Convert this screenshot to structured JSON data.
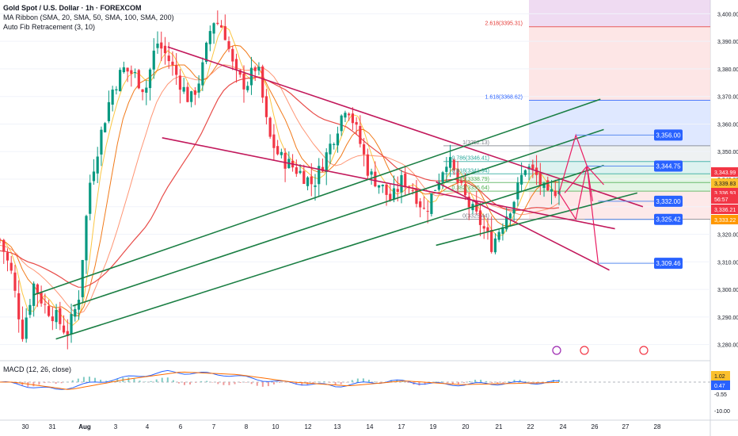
{
  "legend": {
    "title": "Gold Spot / U.S. Dollar · 1h · FOREXCOM",
    "ma_ribbon": "MA Ribbon (SMA, 20, SMA, 50, SMA, 100, SMA, 200)",
    "fib": "Auto Fib Retracement (3, 10)"
  },
  "macd_legend": "MACD (12, 26, close)",
  "chart_data": {
    "type": "candlestick",
    "symbol": "Gold Spot / U.S. Dollar",
    "timeframe": "1h",
    "source": "FOREXCOM",
    "price_axis": {
      "min": 3275,
      "max": 3405,
      "ticks": [
        3280,
        3290,
        3300,
        3310,
        3320,
        3330,
        3340,
        3350,
        3360,
        3370,
        3380,
        3390,
        3400
      ]
    },
    "price_tick_labels": [
      "3,280.00",
      "3,290.00",
      "3,300.00",
      "3,310.00",
      "3,320.00",
      "3,330.00",
      "3,340.00",
      "3,350.00",
      "3,360.00",
      "3,370.00",
      "3,380.00",
      "3,390.00",
      "3,400.00"
    ],
    "time_labels": [
      "30",
      "31",
      "Aug",
      "3",
      "4",
      "6",
      "7",
      "8",
      "10",
      "12",
      "13",
      "14",
      "17",
      "19",
      "20",
      "21",
      "22",
      "24",
      "26",
      "27",
      "28"
    ],
    "price_path": [
      [
        0,
        3318
      ],
      [
        1,
        3306
      ],
      [
        2,
        3284
      ],
      [
        3,
        3302
      ],
      [
        4,
        3294
      ],
      [
        5,
        3290
      ],
      [
        6,
        3284
      ],
      [
        7,
        3296
      ],
      [
        8,
        3338
      ],
      [
        9,
        3356
      ],
      [
        10,
        3372
      ],
      [
        11,
        3380
      ],
      [
        12,
        3378
      ],
      [
        13,
        3372
      ],
      [
        14,
        3390
      ],
      [
        15,
        3384
      ],
      [
        16,
        3376
      ],
      [
        17,
        3368
      ],
      [
        18,
        3378
      ],
      [
        19,
        3398
      ],
      [
        20,
        3395
      ],
      [
        21,
        3378
      ],
      [
        22,
        3374
      ],
      [
        23,
        3382
      ],
      [
        24,
        3356
      ],
      [
        25,
        3348
      ],
      [
        26,
        3345
      ],
      [
        27,
        3342
      ],
      [
        28,
        3338
      ],
      [
        29,
        3347
      ],
      [
        30,
        3357
      ],
      [
        31,
        3368
      ],
      [
        32,
        3356
      ],
      [
        33,
        3342
      ],
      [
        34,
        3338
      ],
      [
        35,
        3332
      ],
      [
        36,
        3340
      ],
      [
        37,
        3336
      ],
      [
        38,
        3328
      ],
      [
        39,
        3338
      ],
      [
        40,
        3348
      ],
      [
        41,
        3338
      ],
      [
        42,
        3330
      ],
      [
        43,
        3324
      ],
      [
        44,
        3316
      ],
      [
        45,
        3325
      ],
      [
        46,
        3333
      ],
      [
        47,
        3345
      ],
      [
        48,
        3341
      ],
      [
        49,
        3333
      ],
      [
        50,
        3338
      ]
    ],
    "fib_levels": [
      {
        "label": "2.618(3395.31)",
        "value": 3395.31,
        "color": "#e53935"
      },
      {
        "label": "1.618(3368.62)",
        "value": 3368.62,
        "color": "#2962ff"
      },
      {
        "label": "1(3352.13)",
        "value": 3352.13,
        "color": "#787b86"
      },
      {
        "label": "0.786(3346.41)",
        "value": 3346.41,
        "color": "#26a69a"
      },
      {
        "label": "0.618(3341.94)",
        "value": 3341.94,
        "color": "#26a69a"
      },
      {
        "label": "0.5(3338.79)",
        "value": 3338.79,
        "color": "#4caf50"
      },
      {
        "label": "0.382(3335.64)",
        "value": 3335.64,
        "color": "#4caf50"
      },
      {
        "label": "0(3325.44)",
        "value": 3325.44,
        "color": "#787b86"
      }
    ],
    "scenario_labels": [
      "3,356.00",
      "3,344.75",
      "3,332.00",
      "3,325.42",
      "3,309.46"
    ],
    "price_tags": [
      {
        "value": "3,343.99",
        "color": "#f23645"
      },
      {
        "value": "3,339.83",
        "color": "#fbc02d"
      },
      {
        "value": "3,336.93",
        "color": "#f23645"
      },
      {
        "value": "56:57",
        "color": "#f23645"
      },
      {
        "value": "3,336.21",
        "color": "#f23645"
      },
      {
        "value": "3,333.22",
        "color": "#ff9800"
      }
    ],
    "macd": {
      "axis_ticks": [
        "1.02",
        "0.47",
        "-0.55",
        "-10.00"
      ],
      "path": [
        [
          0,
          0
        ],
        [
          5,
          -6
        ],
        [
          10,
          2
        ],
        [
          15,
          8
        ],
        [
          20,
          6
        ],
        [
          25,
          0
        ],
        [
          30,
          -3
        ],
        [
          35,
          1
        ],
        [
          40,
          -2
        ],
        [
          45,
          -1
        ],
        [
          50,
          0
        ]
      ]
    },
    "colors": {
      "up": "#089981",
      "down": "#f23645",
      "channel_red": "#c2185b",
      "channel_green": "#1b7f44",
      "ma_red": "#e53935",
      "ma_orange": "#ef6c00",
      "ma_yellow": "#fbc02d",
      "tag_blue": "#2962ff"
    }
  }
}
